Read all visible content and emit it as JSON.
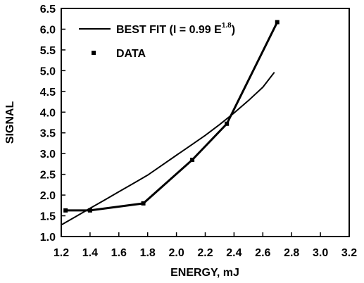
{
  "chart_data": {
    "type": "line",
    "xlabel": "ENERGY, mJ",
    "ylabel": "SIGNAL",
    "xlim": [
      1.2,
      3.2
    ],
    "ylim": [
      1.0,
      6.5
    ],
    "x_ticks": [
      "1.2",
      "1.4",
      "1.6",
      "1.8",
      "2.0",
      "2.2",
      "2.4",
      "2.6",
      "2.8",
      "3.0",
      "3.2"
    ],
    "y_ticks": [
      "1.0",
      "1.5",
      "2.0",
      "2.5",
      "3.0",
      "3.5",
      "4.0",
      "4.5",
      "5.0",
      "5.5",
      "6.0",
      "6.5"
    ],
    "grid": false,
    "legend_position": "top-left",
    "legend": {
      "fit_label": "BEST FIT (I = 0.99 E",
      "fit_exponent": "1.8",
      "fit_close": ")",
      "data_label": "DATA"
    },
    "series": [
      {
        "name": "BEST FIT (I = 0.99 E1.8)",
        "kind": "fit",
        "x": [
          1.2,
          1.3,
          1.4,
          1.5,
          1.6,
          1.7,
          1.8,
          1.9,
          2.0,
          2.1,
          2.2,
          2.3,
          2.4,
          2.5,
          2.6,
          2.68
        ],
        "y": [
          1.28,
          1.48,
          1.68,
          1.88,
          2.08,
          2.28,
          2.48,
          2.72,
          2.96,
          3.2,
          3.44,
          3.7,
          3.98,
          4.28,
          4.6,
          4.96
        ]
      },
      {
        "name": "DATA",
        "kind": "data",
        "x": [
          1.23,
          1.4,
          1.77,
          2.11,
          2.35,
          2.7
        ],
        "y": [
          1.63,
          1.63,
          1.8,
          2.85,
          3.72,
          6.17
        ]
      }
    ]
  }
}
